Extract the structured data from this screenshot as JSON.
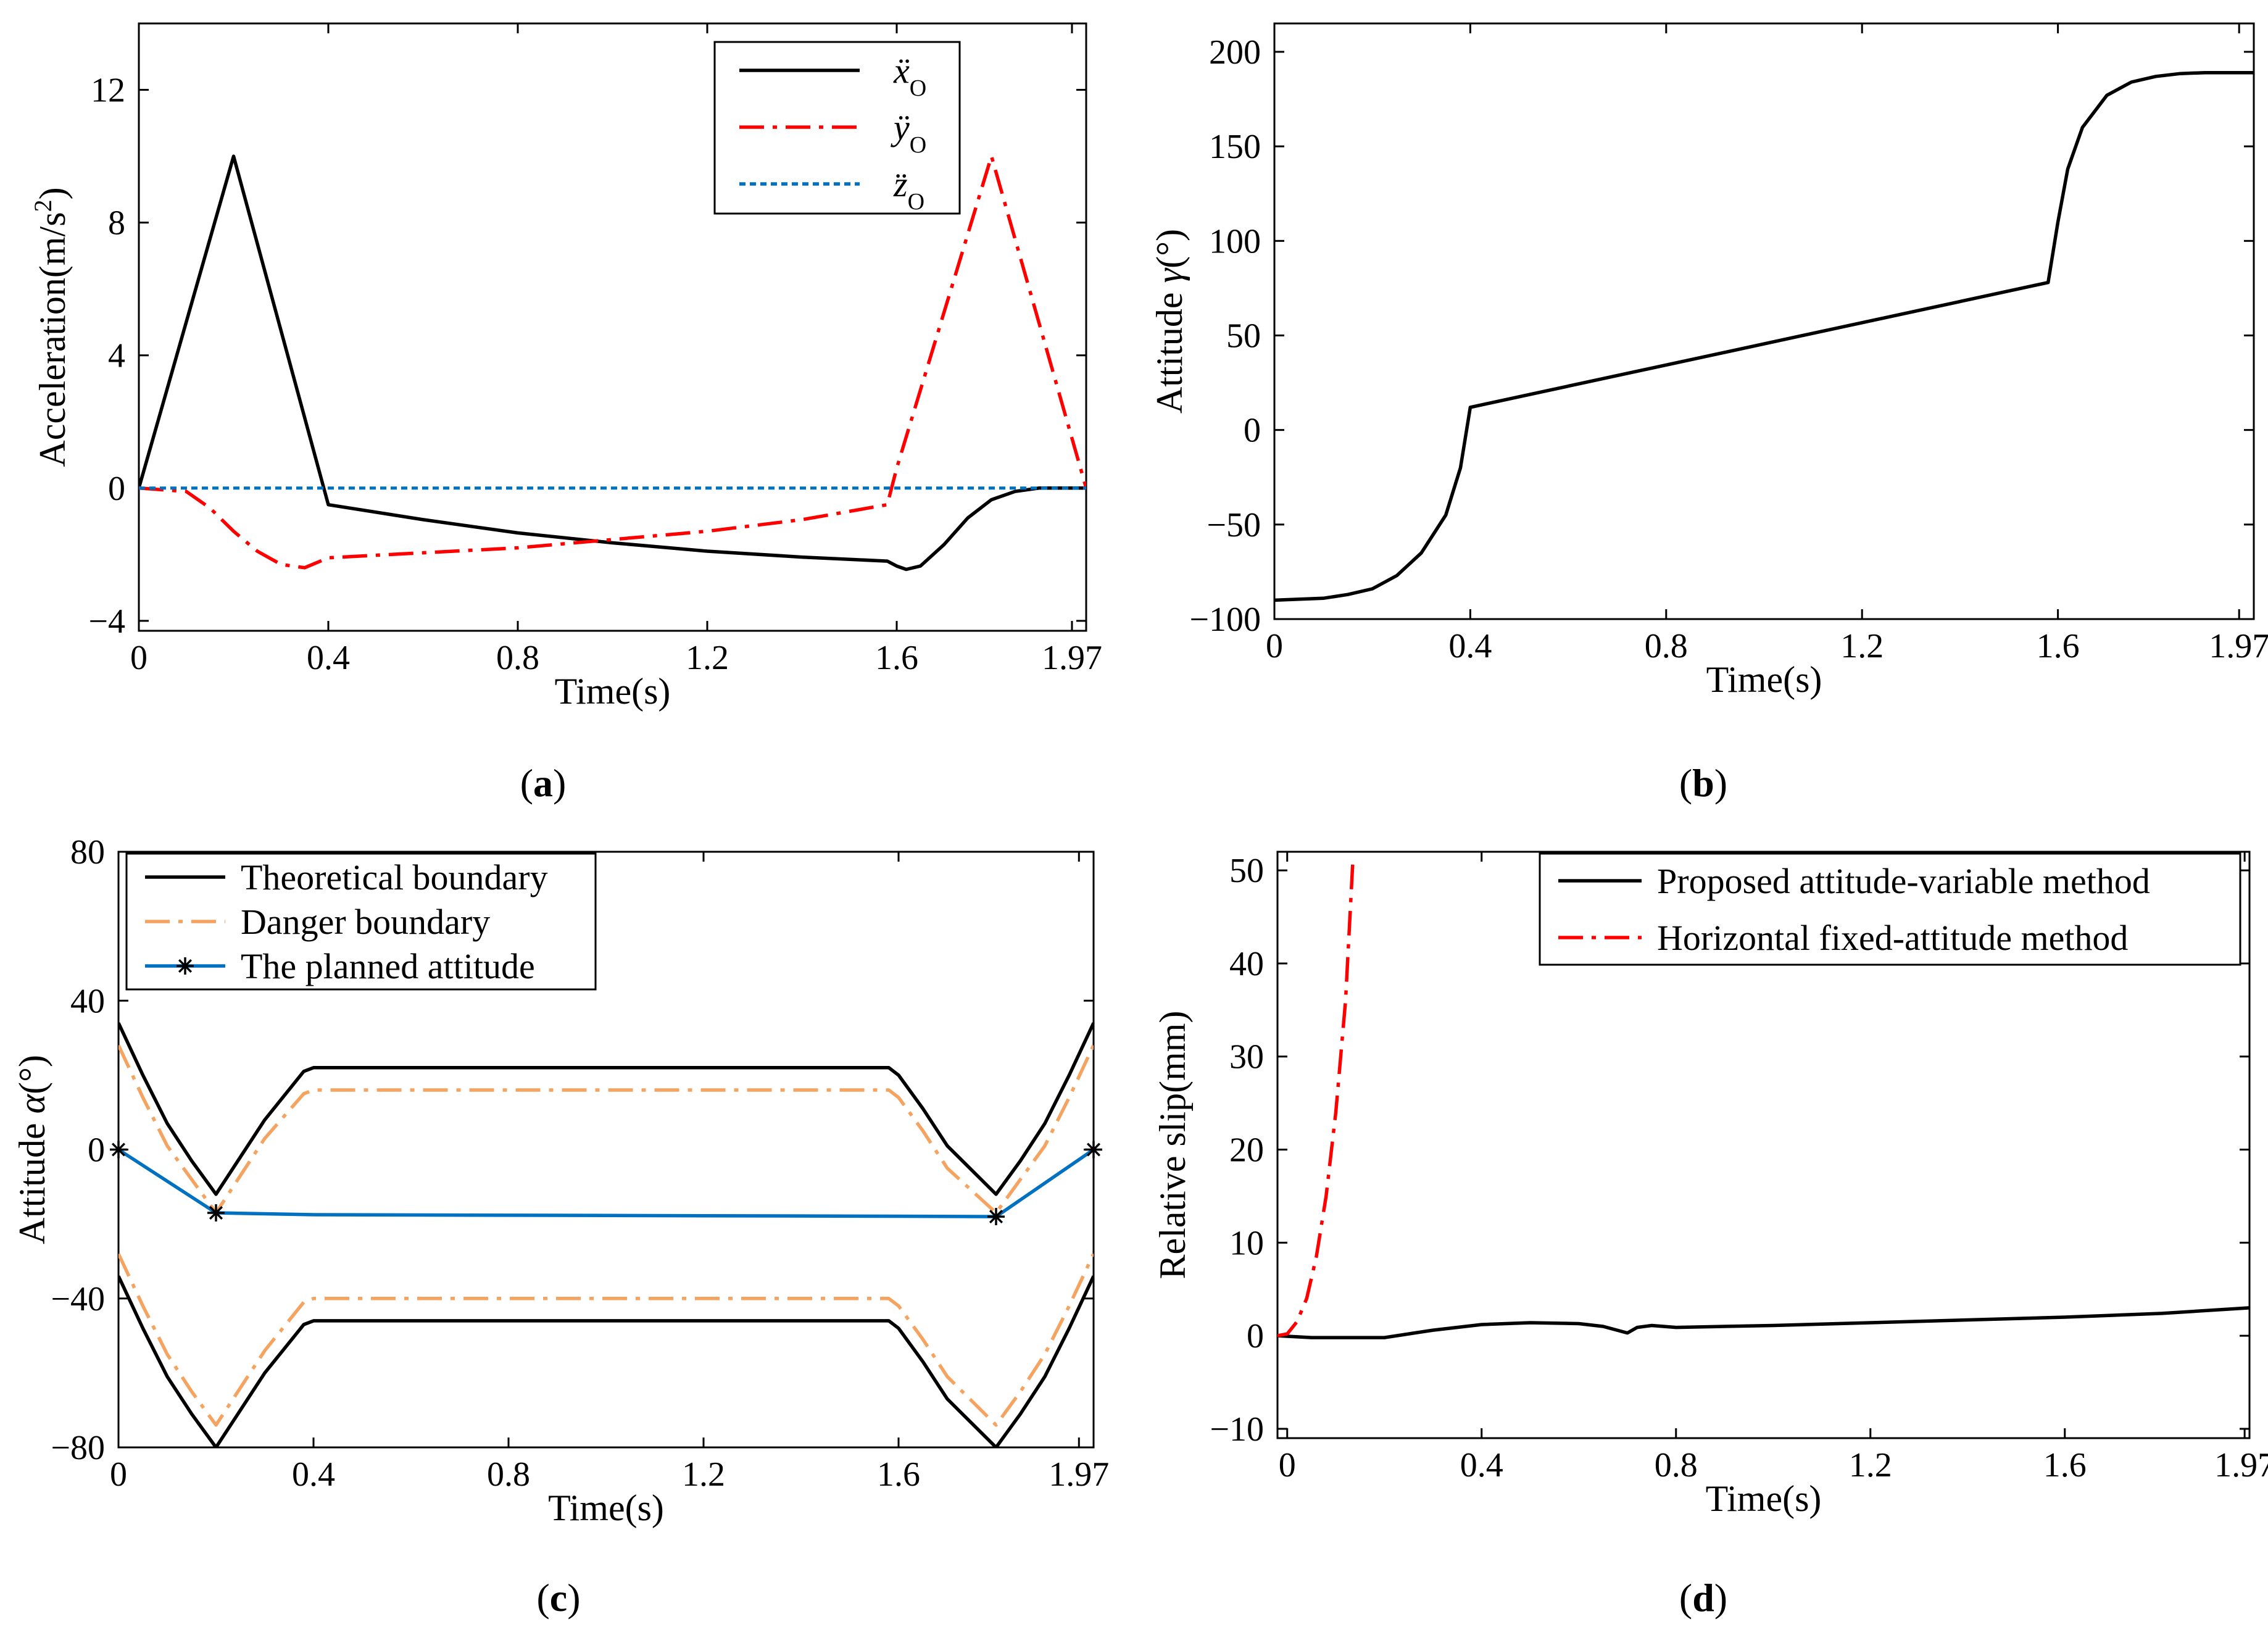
{
  "figure": {
    "panels": [
      "a",
      "b",
      "c",
      "d"
    ],
    "captions": [
      {
        "open": "(",
        "letter": "a",
        "close": ")"
      },
      {
        "open": "(",
        "letter": "b",
        "close": ")"
      },
      {
        "open": "(",
        "letter": "c",
        "close": ")"
      },
      {
        "open": "(",
        "letter": "d",
        "close": ")"
      }
    ]
  },
  "chart_data": [
    {
      "id": "a",
      "type": "line",
      "xlabel": "Time(s)",
      "ylabel_prefix": "Acceleration(m/s",
      "ylabel_sup": "2",
      "ylabel_suffix": ")",
      "xlim": [
        0,
        2.0
      ],
      "ylim": [
        -4.3,
        14
      ],
      "xticks": [
        0,
        0.4,
        0.8,
        1.2,
        1.6,
        1.97
      ],
      "xtick_labels": [
        "0",
        "0.4",
        "0.8",
        "1.2",
        "1.6",
        "1.97"
      ],
      "yticks": [
        -4,
        0,
        4,
        8,
        12
      ],
      "ytick_labels": [
        "−4",
        "0",
        "4",
        "8",
        "12"
      ],
      "legend_position": "top-right",
      "series": [
        {
          "name": "ẍ",
          "sub": "O",
          "color": "#000000",
          "dash": "solid",
          "x": [
            0,
            0.2,
            0.4,
            0.6,
            0.8,
            1.0,
            1.2,
            1.4,
            1.58,
            1.6,
            1.62,
            1.65,
            1.7,
            1.75,
            1.8,
            1.85,
            1.9,
            2.0
          ],
          "y": [
            0,
            10,
            -0.5,
            -0.95,
            -1.35,
            -1.65,
            -1.9,
            -2.08,
            -2.2,
            -2.35,
            -2.45,
            -2.35,
            -1.7,
            -0.9,
            -0.35,
            -0.1,
            0,
            0
          ]
        },
        {
          "name": "ÿ",
          "sub": "O",
          "color": "#ff0000",
          "dash": "dashdot",
          "x": [
            0,
            0.1,
            0.15,
            0.2,
            0.25,
            0.3,
            0.35,
            0.4,
            0.6,
            0.8,
            1.0,
            1.2,
            1.4,
            1.58,
            1.6,
            1.8,
            2.0
          ],
          "y": [
            0,
            -0.1,
            -0.6,
            -1.3,
            -1.9,
            -2.3,
            -2.4,
            -2.1,
            -1.95,
            -1.8,
            -1.55,
            -1.3,
            -0.95,
            -0.5,
            0.6,
            10,
            0
          ]
        },
        {
          "name": "z̈",
          "sub": "O",
          "color": "#0070c0",
          "dash": "dotted",
          "x": [
            0,
            2.0
          ],
          "y": [
            0,
            0
          ]
        }
      ]
    },
    {
      "id": "b",
      "type": "line",
      "xlabel": "Time(s)",
      "ylabel_prefix": "Attitude ",
      "ylabel_symbol": "γ",
      "ylabel_suffix": "(°)",
      "xlim": [
        0,
        2.0
      ],
      "ylim": [
        -100,
        215
      ],
      "xticks": [
        0,
        0.4,
        0.8,
        1.2,
        1.6,
        1.97
      ],
      "xtick_labels": [
        "0",
        "0.4",
        "0.8",
        "1.2",
        "1.6",
        "1.97"
      ],
      "yticks": [
        -100,
        -50,
        0,
        50,
        100,
        150,
        200
      ],
      "ytick_labels": [
        "−100",
        "−50",
        "0",
        "50",
        "100",
        "150",
        "200"
      ],
      "series": [
        {
          "name": "attitude gamma",
          "color": "#000000",
          "dash": "solid",
          "x": [
            0,
            0.1,
            0.15,
            0.2,
            0.25,
            0.3,
            0.35,
            0.38,
            0.4,
            1.58,
            1.6,
            1.62,
            1.65,
            1.7,
            1.75,
            1.8,
            1.85,
            1.9,
            2.0
          ],
          "y": [
            -90,
            -89,
            -87,
            -84,
            -77,
            -65,
            -45,
            -20,
            12,
            78,
            110,
            138,
            160,
            177,
            184,
            187,
            188.5,
            189,
            189
          ]
        }
      ]
    },
    {
      "id": "c",
      "type": "line",
      "xlabel": "Time(s)",
      "ylabel_prefix": "Attitude ",
      "ylabel_symbol": "α",
      "ylabel_suffix": "(°)",
      "xlim": [
        0,
        2.0
      ],
      "ylim": [
        -80,
        80
      ],
      "xticks": [
        0,
        0.4,
        0.8,
        1.2,
        1.6,
        1.97
      ],
      "xtick_labels": [
        "0",
        "0.4",
        "0.8",
        "1.2",
        "1.6",
        "1.97"
      ],
      "yticks": [
        -80,
        -40,
        0,
        40,
        80
      ],
      "ytick_labels": [
        "−80",
        "−40",
        "0",
        "40",
        "80"
      ],
      "legend_position": "top-left",
      "series": [
        {
          "name": "Theoretical boundary",
          "color": "#000000",
          "dash": "solid",
          "x": [
            0,
            0.05,
            0.1,
            0.15,
            0.2,
            0.3,
            0.38,
            0.4,
            1.58,
            1.6,
            1.65,
            1.7,
            1.8,
            1.85,
            1.9,
            1.95,
            2.0
          ],
          "y": [
            34,
            20,
            7,
            -3,
            -12,
            8,
            21,
            22,
            22,
            20,
            11,
            1,
            -12,
            -3,
            7,
            20,
            34
          ]
        },
        {
          "name": "Theoretical boundary lower",
          "color": "#000000",
          "dash": "solid",
          "legend": false,
          "x": [
            0,
            0.05,
            0.1,
            0.15,
            0.2,
            0.3,
            0.38,
            0.4,
            1.58,
            1.6,
            1.65,
            1.7,
            1.8,
            1.85,
            1.9,
            1.95,
            2.0
          ],
          "y": [
            -34,
            -48,
            -61,
            -71,
            -80,
            -60,
            -47,
            -46,
            -46,
            -48,
            -57,
            -67,
            -80,
            -71,
            -61,
            -48,
            -34
          ]
        },
        {
          "name": "Danger boundary",
          "color": "#f4a460",
          "dash": "dashdot",
          "x": [
            0,
            0.05,
            0.1,
            0.15,
            0.2,
            0.3,
            0.38,
            0.4,
            1.58,
            1.6,
            1.65,
            1.7,
            1.8,
            1.85,
            1.9,
            1.95,
            2.0
          ],
          "y": [
            28,
            14,
            1,
            -8,
            -17,
            3,
            15,
            16,
            16,
            14,
            5,
            -5,
            -17,
            -8,
            1,
            14,
            28
          ]
        },
        {
          "name": "Danger boundary lower",
          "color": "#f4a460",
          "dash": "dashdot",
          "legend": false,
          "x": [
            0,
            0.05,
            0.1,
            0.15,
            0.2,
            0.3,
            0.38,
            0.4,
            1.58,
            1.6,
            1.65,
            1.7,
            1.8,
            1.85,
            1.9,
            1.95,
            2.0
          ],
          "y": [
            -28,
            -42,
            -55,
            -65,
            -74,
            -54,
            -41,
            -40,
            -40,
            -42,
            -51,
            -61,
            -74,
            -65,
            -55,
            -42,
            -28
          ]
        },
        {
          "name": "The planned attitude",
          "color": "#0070c0",
          "dash": "solid",
          "marker": "asterisk",
          "x": [
            0,
            0.2,
            0.4,
            1.0,
            1.6,
            1.8,
            2.0
          ],
          "y": [
            0,
            -17,
            -17.5,
            -17.7,
            -17.9,
            -18,
            0
          ],
          "marker_x": [
            0,
            0.2,
            1.8,
            2.0
          ],
          "marker_y": [
            0,
            -17,
            -18,
            0
          ]
        }
      ]
    },
    {
      "id": "d",
      "type": "line",
      "xlabel": "Time(s)",
      "ylabel": "Relative slip(mm)",
      "xlim": [
        -0.02,
        1.98
      ],
      "ylim": [
        -11,
        52
      ],
      "xticks": [
        0,
        0.4,
        0.8,
        1.2,
        1.6,
        1.97
      ],
      "xtick_labels": [
        "0",
        "0.4",
        "0.8",
        "1.2",
        "1.6",
        "1.97"
      ],
      "yticks": [
        -10,
        0,
        10,
        20,
        30,
        40,
        50
      ],
      "ytick_labels": [
        "−10",
        "0",
        "10",
        "20",
        "30",
        "40",
        "50"
      ],
      "legend_position": "top-right",
      "series": [
        {
          "name": "Proposed attitude-variable method",
          "color": "#000000",
          "dash": "solid",
          "x": [
            -0.02,
            0.05,
            0.1,
            0.2,
            0.3,
            0.4,
            0.5,
            0.6,
            0.65,
            0.7,
            0.72,
            0.75,
            0.8,
            1.0,
            1.2,
            1.4,
            1.6,
            1.8,
            1.98
          ],
          "y": [
            0,
            -0.2,
            -0.2,
            -0.2,
            0.6,
            1.2,
            1.4,
            1.3,
            1.0,
            0.3,
            0.9,
            1.1,
            0.9,
            1.1,
            1.4,
            1.7,
            2.0,
            2.4,
            3.0
          ]
        },
        {
          "name": "Horizontal fixed-attitude method",
          "color": "#ff0000",
          "dash": "dashdot",
          "x": [
            -0.02,
            0.0,
            0.02,
            0.04,
            0.06,
            0.08,
            0.1,
            0.12,
            0.135
          ],
          "y": [
            0,
            0.2,
            1.5,
            4,
            8.5,
            15,
            24,
            36,
            51
          ]
        }
      ]
    }
  ]
}
